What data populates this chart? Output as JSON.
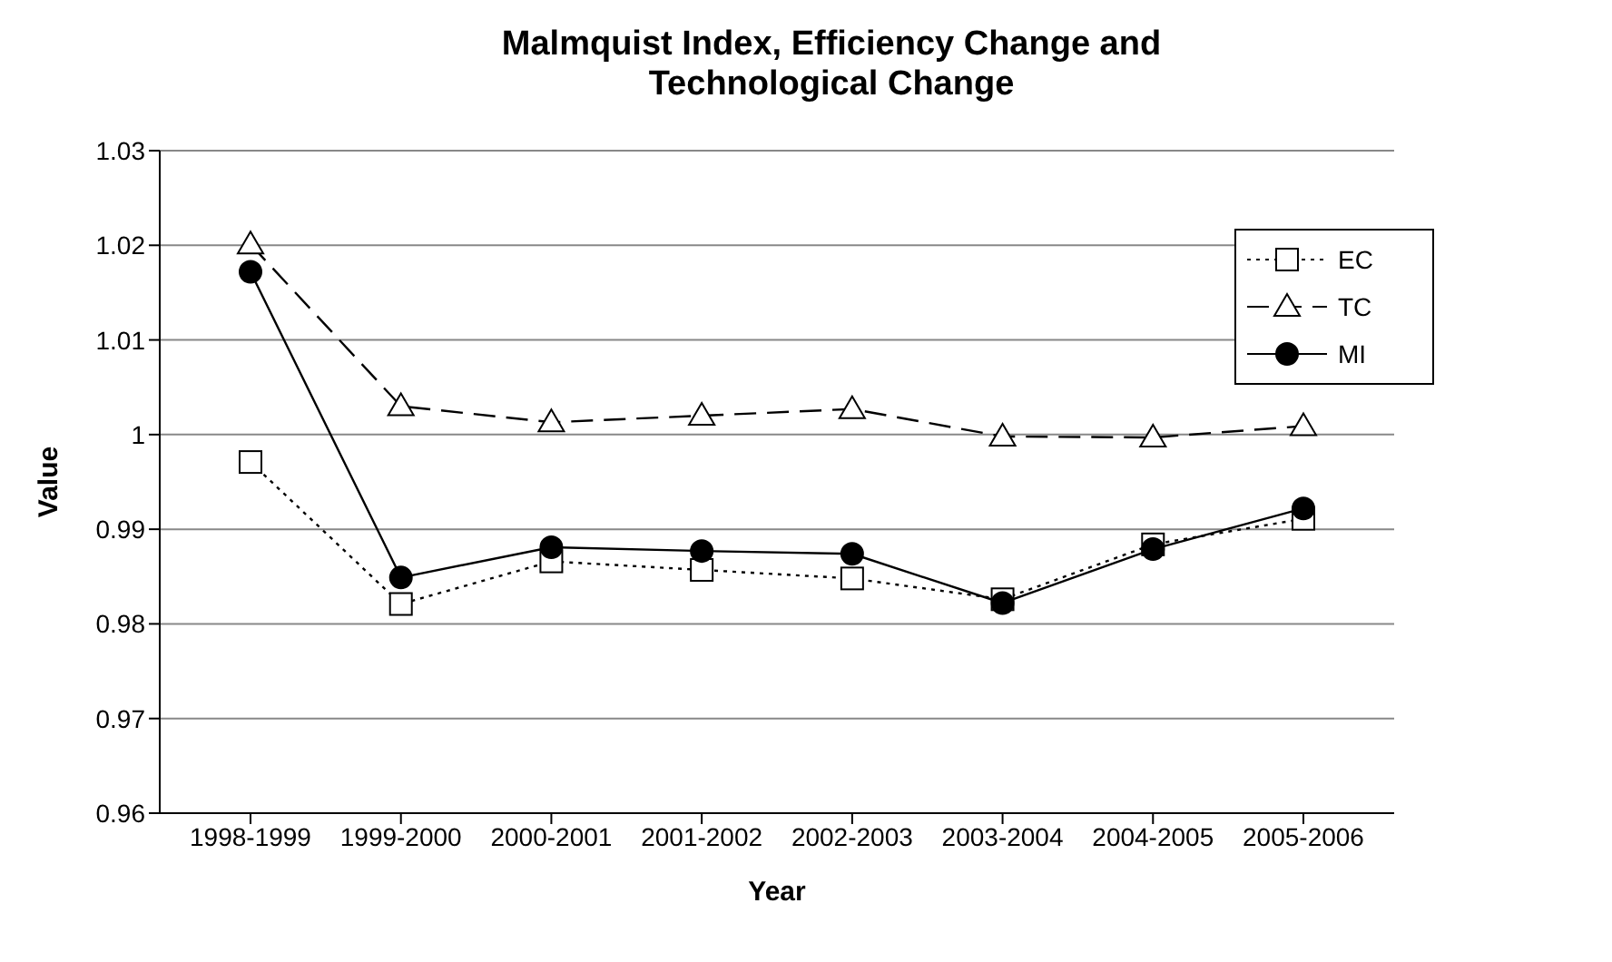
{
  "chart_data": {
    "type": "line",
    "title": "Malmquist Index, Efficiency Change and Technological Change",
    "xlabel": "Year",
    "ylabel": "Value",
    "categories": [
      "1998-1999",
      "1999-2000",
      "2000-2001",
      "2001-2002",
      "2002-2003",
      "2003-2004",
      "2004-2005",
      "2005-2006"
    ],
    "series": [
      {
        "name": "EC",
        "color": "#000000",
        "marker": "square",
        "line_style": "dotted",
        "values": [
          0.9971,
          0.9821,
          0.9866,
          0.9857,
          0.9848,
          0.9826,
          0.9884,
          0.9911
        ]
      },
      {
        "name": "TC",
        "color": "#000000",
        "marker": "triangle",
        "line_style": "dashed",
        "values": [
          1.0201,
          1.003,
          1.0013,
          1.002,
          1.0027,
          0.9998,
          0.9997,
          1.0009
        ]
      },
      {
        "name": "MI",
        "color": "#000000",
        "marker": "circle",
        "line_style": "solid",
        "values": [
          1.0172,
          0.9849,
          0.9881,
          0.9877,
          0.9874,
          0.9822,
          0.9879,
          0.9922
        ]
      }
    ],
    "ylim": [
      0.96,
      1.03
    ],
    "yticks": [
      0.96,
      0.97,
      0.98,
      0.99,
      1,
      1.01,
      1.02,
      1.03
    ],
    "grid": "y",
    "legend": "top right"
  }
}
